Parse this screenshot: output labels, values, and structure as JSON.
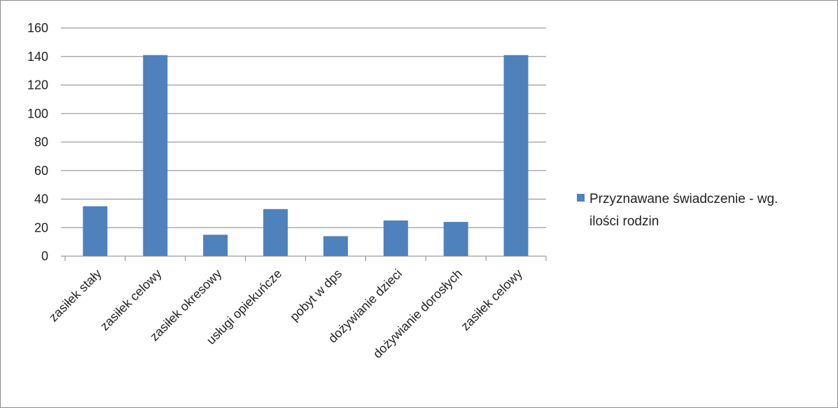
{
  "chart_data": {
    "type": "bar",
    "categories": [
      "zasiłek stały",
      "zasiłek  celowy",
      "zasiłek okresowy",
      "usługi opiekuńcze",
      "pobyt w dps",
      "dożywianie dzieci",
      "dożywianie dorosłych",
      "zasiłek celowy"
    ],
    "series": [
      {
        "name": "Przyznawane świadczenie - wg. ilości rodzin",
        "values": [
          35,
          141,
          15,
          33,
          14,
          25,
          24,
          141
        ]
      }
    ],
    "yticks": [
      "0",
      "20",
      "40",
      "60",
      "80",
      "100",
      "120",
      "140",
      "160"
    ],
    "ylim": [
      0,
      160
    ],
    "grid": true,
    "legend_position": "right",
    "legend_lines": [
      "Przyznawane świadczenie - wg.",
      "ilości rodzin"
    ],
    "bar_color": "#4f81bd",
    "grid_color": "#868686"
  }
}
